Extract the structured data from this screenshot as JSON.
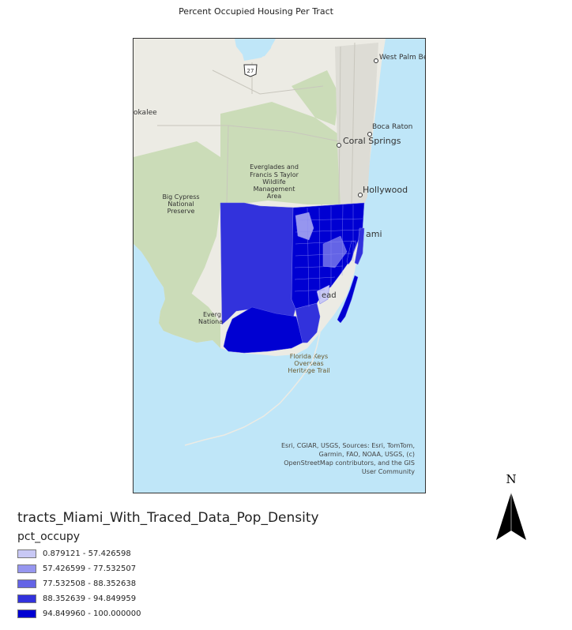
{
  "title": "Percent Occupied Housing Per Tract",
  "map": {
    "places": {
      "west_palm_beach": "West Palm Be",
      "okalee": "okalee",
      "boca_raton": "Boca Raton",
      "coral_springs": "Coral Springs",
      "hollywood": "Hollywood",
      "miami": "ami",
      "homestead": "ead"
    },
    "areas": {
      "everglades": [
        "Everglades and",
        "Francis S Taylor",
        "Wildlife",
        "Management",
        "Area"
      ],
      "big_cypress": [
        "Big Cypress",
        "National",
        "Preserve"
      ],
      "everglades_np": [
        "Everg",
        "Nationa"
      ],
      "keys_trail": [
        "Florida Keys",
        "Overseas",
        "Heritage Trail"
      ]
    },
    "highway_shield": "27",
    "attribution": [
      "Esri, CGIAR, USGS, Sources: Esri, TomTom,",
      "Garmin, FAO, NOAA, USGS, (c)",
      "OpenStreetMap contributors, and the GIS",
      "User Community"
    ]
  },
  "legend": {
    "layer_name": "tracts_Miami_With_Traced_Data_Pop_Density",
    "field_name": "pct_occupy",
    "classes": [
      {
        "label": "0.879121 - 57.426598",
        "color": "#c8c8f5"
      },
      {
        "label": "57.426599 - 77.532507",
        "color": "#9696ef"
      },
      {
        "label": "77.532508 - 88.352638",
        "color": "#6464e6"
      },
      {
        "label": "88.352639 - 94.849959",
        "color": "#3232dc"
      },
      {
        "label": "94.849960 - 100.000000",
        "color": "#0000d2"
      }
    ]
  },
  "north_arrow": {
    "letter": "N"
  },
  "colors": {
    "water": "#bfe6f8",
    "land": "#ecebe4",
    "park": "#cbdcb8",
    "tract_dark": "#0000d2",
    "tract_mid": "#3232dc"
  }
}
